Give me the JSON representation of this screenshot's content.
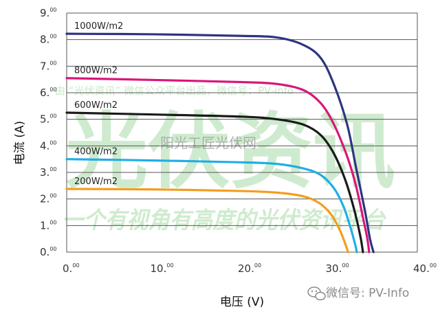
{
  "chart_data": {
    "type": "line",
    "xlabel": "电压 (V)",
    "ylabel": "电流 (A)",
    "xlim": [
      0,
      40
    ],
    "ylim": [
      0,
      9
    ],
    "x_ticks": [
      "0.",
      "10.",
      "20.",
      "30.",
      "40."
    ],
    "y_ticks": [
      "0.",
      "1.",
      "2.",
      "3.",
      "4.",
      "5.",
      "6.",
      "7.",
      "8.",
      "9."
    ],
    "tick_suffix": "00",
    "grid": "horizontal",
    "series": [
      {
        "name": "1000W/m2",
        "color": "#2e3480",
        "points": [
          [
            0,
            8.22
          ],
          [
            10,
            8.2
          ],
          [
            20,
            8.14
          ],
          [
            24,
            8.08
          ],
          [
            27,
            7.8
          ],
          [
            29,
            7.3
          ],
          [
            30.5,
            6.3
          ],
          [
            32,
            4.8
          ],
          [
            33,
            3.2
          ],
          [
            34,
            1.6
          ],
          [
            34.6,
            0.5
          ],
          [
            35,
            0
          ]
        ]
      },
      {
        "name": "800W/m2",
        "color": "#d8177a",
        "points": [
          [
            0,
            6.55
          ],
          [
            10,
            6.48
          ],
          [
            20,
            6.4
          ],
          [
            24,
            6.33
          ],
          [
            27,
            6.1
          ],
          [
            29,
            5.6
          ],
          [
            30.5,
            4.8
          ],
          [
            32,
            3.6
          ],
          [
            33,
            2.5
          ],
          [
            33.8,
            1.3
          ],
          [
            34.3,
            0.5
          ],
          [
            34.5,
            0
          ]
        ]
      },
      {
        "name": "600W/m2",
        "color": "#1a1a1a",
        "points": [
          [
            0,
            5.25
          ],
          [
            10,
            5.18
          ],
          [
            20,
            5.1
          ],
          [
            24,
            5.0
          ],
          [
            27,
            4.8
          ],
          [
            29,
            4.4
          ],
          [
            30.5,
            3.7
          ],
          [
            31.8,
            2.7
          ],
          [
            32.8,
            1.6
          ],
          [
            33.5,
            0.6
          ],
          [
            33.8,
            0
          ]
        ]
      },
      {
        "name": "400W/m2",
        "color": "#1eaee6",
        "points": [
          [
            0,
            3.5
          ],
          [
            10,
            3.45
          ],
          [
            20,
            3.38
          ],
          [
            24,
            3.32
          ],
          [
            27,
            3.15
          ],
          [
            29,
            2.9
          ],
          [
            30.5,
            2.4
          ],
          [
            31.6,
            1.7
          ],
          [
            32.4,
            0.9
          ],
          [
            32.9,
            0.3
          ],
          [
            33.1,
            0
          ]
        ]
      },
      {
        "name": "200W/m2",
        "color": "#f39d1e",
        "points": [
          [
            0,
            2.38
          ],
          [
            10,
            2.36
          ],
          [
            20,
            2.3
          ],
          [
            24,
            2.24
          ],
          [
            27,
            2.1
          ],
          [
            28.8,
            1.85
          ],
          [
            30.2,
            1.4
          ],
          [
            31.2,
            0.8
          ],
          [
            31.9,
            0.2
          ],
          [
            32.1,
            0
          ]
        ]
      }
    ]
  },
  "watermark": {
    "line1": "由 “光伏资讯” 微信公众平台出品，微信号：PV-info",
    "big": "光伏资讯",
    "overlay": "阳光工匠光伏网",
    "slogan": "一个有视角有高度的光伏资讯平台",
    "footer": "微信号: PV-Info",
    "green": "#9fd89f"
  }
}
